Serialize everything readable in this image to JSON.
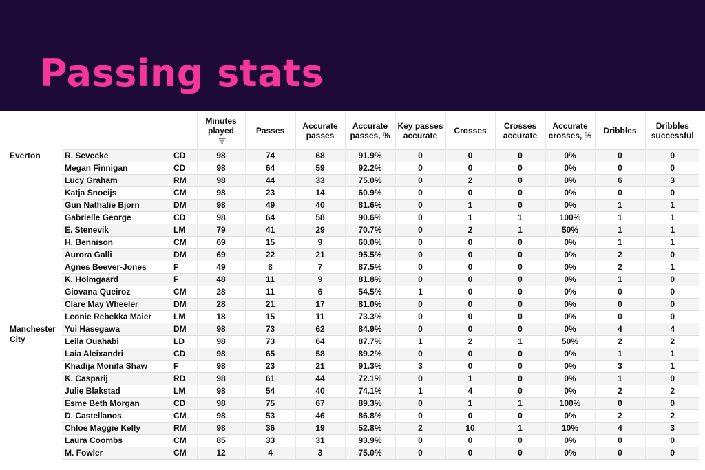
{
  "header": {
    "title": "Passing stats"
  },
  "table": {
    "columns": [
      "Minutes played",
      "Passes",
      "Accurate passes",
      "Accurate passes, %",
      "Key passes accurate",
      "Crosses",
      "Crosses accurate",
      "Accurate crosses, %",
      "Dribbles",
      "Dribbles successful"
    ],
    "teams": [
      {
        "name": "Everton",
        "players": [
          {
            "name": "R. Sevecke",
            "pos": "CD",
            "values": [
              "98",
              "74",
              "68",
              "91.9%",
              "0",
              "0",
              "0",
              "0%",
              "0",
              "0"
            ]
          },
          {
            "name": "Megan Finnigan",
            "pos": "CD",
            "values": [
              "98",
              "64",
              "59",
              "92.2%",
              "0",
              "0",
              "0",
              "0%",
              "0",
              "0"
            ]
          },
          {
            "name": "Lucy Graham",
            "pos": "RM",
            "values": [
              "98",
              "44",
              "33",
              "75.0%",
              "0",
              "2",
              "0",
              "0%",
              "6",
              "3"
            ]
          },
          {
            "name": "Katja Snoeijs",
            "pos": "CM",
            "values": [
              "98",
              "23",
              "14",
              "60.9%",
              "0",
              "0",
              "0",
              "0%",
              "0",
              "0"
            ]
          },
          {
            "name": "Gun Nathalie Bjorn",
            "pos": "DM",
            "values": [
              "98",
              "49",
              "40",
              "81.6%",
              "0",
              "1",
              "0",
              "0%",
              "1",
              "1"
            ]
          },
          {
            "name": "Gabrielle George",
            "pos": "CD",
            "values": [
              "98",
              "64",
              "58",
              "90.6%",
              "0",
              "1",
              "1",
              "100%",
              "1",
              "1"
            ]
          },
          {
            "name": "E. Stenevik",
            "pos": "LM",
            "values": [
              "79",
              "41",
              "29",
              "70.7%",
              "0",
              "2",
              "1",
              "50%",
              "1",
              "1"
            ]
          },
          {
            "name": "H. Bennison",
            "pos": "CM",
            "values": [
              "69",
              "15",
              "9",
              "60.0%",
              "0",
              "0",
              "0",
              "0%",
              "1",
              "1"
            ]
          },
          {
            "name": "Aurora Galli",
            "pos": "DM",
            "values": [
              "69",
              "22",
              "21",
              "95.5%",
              "0",
              "0",
              "0",
              "0%",
              "2",
              "0"
            ]
          },
          {
            "name": "Agnes Beever-Jones",
            "pos": "F",
            "values": [
              "49",
              "8",
              "7",
              "87.5%",
              "0",
              "0",
              "0",
              "0%",
              "2",
              "1"
            ]
          },
          {
            "name": "K. Holmgaard",
            "pos": "F",
            "values": [
              "48",
              "11",
              "9",
              "81.8%",
              "0",
              "0",
              "0",
              "0%",
              "1",
              "0"
            ]
          },
          {
            "name": "Giovana Queiroz",
            "pos": "CM",
            "values": [
              "28",
              "11",
              "6",
              "54.5%",
              "1",
              "0",
              "0",
              "0%",
              "0",
              "0"
            ]
          },
          {
            "name": "Clare May Wheeler",
            "pos": "DM",
            "values": [
              "28",
              "21",
              "17",
              "81.0%",
              "0",
              "0",
              "0",
              "0%",
              "0",
              "0"
            ]
          },
          {
            "name": "Leonie Rebekka Maier",
            "pos": "LM",
            "values": [
              "18",
              "15",
              "11",
              "73.3%",
              "0",
              "0",
              "0",
              "0%",
              "0",
              "0"
            ]
          }
        ]
      },
      {
        "name": "Manchester City",
        "players": [
          {
            "name": "Yui Hasegawa",
            "pos": "DM",
            "values": [
              "98",
              "73",
              "62",
              "84.9%",
              "0",
              "0",
              "0",
              "0%",
              "4",
              "4"
            ]
          },
          {
            "name": "Leila Ouahabi",
            "pos": "LD",
            "values": [
              "98",
              "73",
              "64",
              "87.7%",
              "1",
              "2",
              "1",
              "50%",
              "2",
              "2"
            ]
          },
          {
            "name": "Laia Aleixandri",
            "pos": "CD",
            "values": [
              "98",
              "65",
              "58",
              "89.2%",
              "0",
              "0",
              "0",
              "0%",
              "1",
              "1"
            ]
          },
          {
            "name": "Khadija Monifa Shaw",
            "pos": "F",
            "values": [
              "98",
              "23",
              "21",
              "91.3%",
              "3",
              "0",
              "0",
              "0%",
              "3",
              "1"
            ]
          },
          {
            "name": "K. Casparij",
            "pos": "RD",
            "values": [
              "98",
              "61",
              "44",
              "72.1%",
              "0",
              "1",
              "0",
              "0%",
              "1",
              "0"
            ]
          },
          {
            "name": "Julie Blakstad",
            "pos": "LM",
            "values": [
              "98",
              "54",
              "40",
              "74.1%",
              "1",
              "4",
              "0",
              "0%",
              "2",
              "2"
            ]
          },
          {
            "name": "Esme Beth Morgan",
            "pos": "CD",
            "values": [
              "98",
              "75",
              "67",
              "89.3%",
              "0",
              "1",
              "1",
              "100%",
              "0",
              "0"
            ]
          },
          {
            "name": "D. Castellanos",
            "pos": "CM",
            "values": [
              "98",
              "53",
              "46",
              "86.8%",
              "0",
              "0",
              "0",
              "0%",
              "2",
              "2"
            ]
          },
          {
            "name": "Chloe Maggie Kelly",
            "pos": "RM",
            "values": [
              "98",
              "36",
              "19",
              "52.8%",
              "2",
              "10",
              "1",
              "10%",
              "4",
              "3"
            ]
          },
          {
            "name": "Laura Coombs",
            "pos": "CM",
            "values": [
              "85",
              "33",
              "31",
              "93.9%",
              "0",
              "0",
              "0",
              "0%",
              "0",
              "0"
            ]
          },
          {
            "name": "M. Fowler",
            "pos": "CM",
            "values": [
              "12",
              "4",
              "3",
              "75.0%",
              "0",
              "0",
              "0",
              "0%",
              "0",
              "0"
            ]
          }
        ]
      }
    ]
  },
  "icons": {
    "sort": "sort-descending-icon"
  },
  "colors": {
    "banner": "#1d0a37",
    "title": "#f5369a"
  }
}
